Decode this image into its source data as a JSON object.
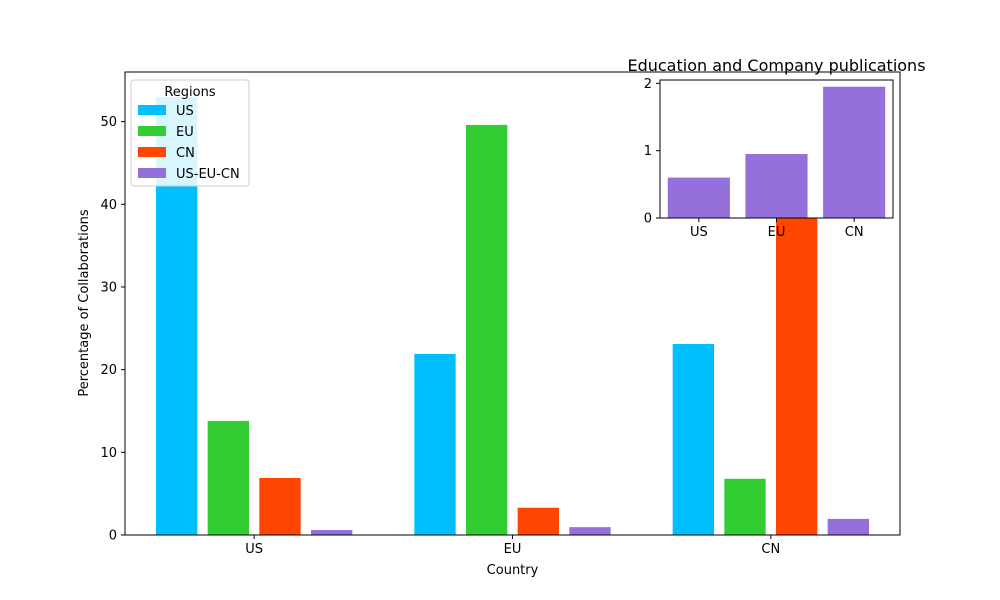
{
  "colors": {
    "US": "#00bfff",
    "EU": "#32cd32",
    "CN": "#ff4500",
    "US-EU-CN": "#9370db",
    "axis": "#000000",
    "background": "#ffffff"
  },
  "chart_data": [
    {
      "type": "bar",
      "title": "",
      "xlabel": "Country",
      "ylabel": "Percentage of Collaborations",
      "categories": [
        "US",
        "EU",
        "CN"
      ],
      "ylim": [
        0,
        56
      ],
      "yticks": [
        0,
        10,
        20,
        30,
        40,
        50
      ],
      "grid": false,
      "legend": {
        "title": "Regions",
        "placement": "top-left"
      },
      "series": [
        {
          "name": "US",
          "values": [
            53.0,
            21.9,
            23.1
          ]
        },
        {
          "name": "EU",
          "values": [
            13.8,
            49.6,
            6.8
          ]
        },
        {
          "name": "CN",
          "values": [
            6.9,
            3.3,
            48.0
          ]
        },
        {
          "name": "US-EU-CN",
          "values": [
            0.6,
            0.95,
            1.95
          ]
        }
      ]
    },
    {
      "type": "bar",
      "title": "Education and Company publications",
      "xlabel": "",
      "ylabel": "",
      "categories": [
        "US",
        "EU",
        "CN"
      ],
      "ylim": [
        0,
        2.05
      ],
      "yticks": [
        0,
        1,
        2
      ],
      "grid": false,
      "series": [
        {
          "name": "US-EU-CN",
          "values": [
            0.6,
            0.95,
            1.95
          ]
        }
      ]
    }
  ]
}
